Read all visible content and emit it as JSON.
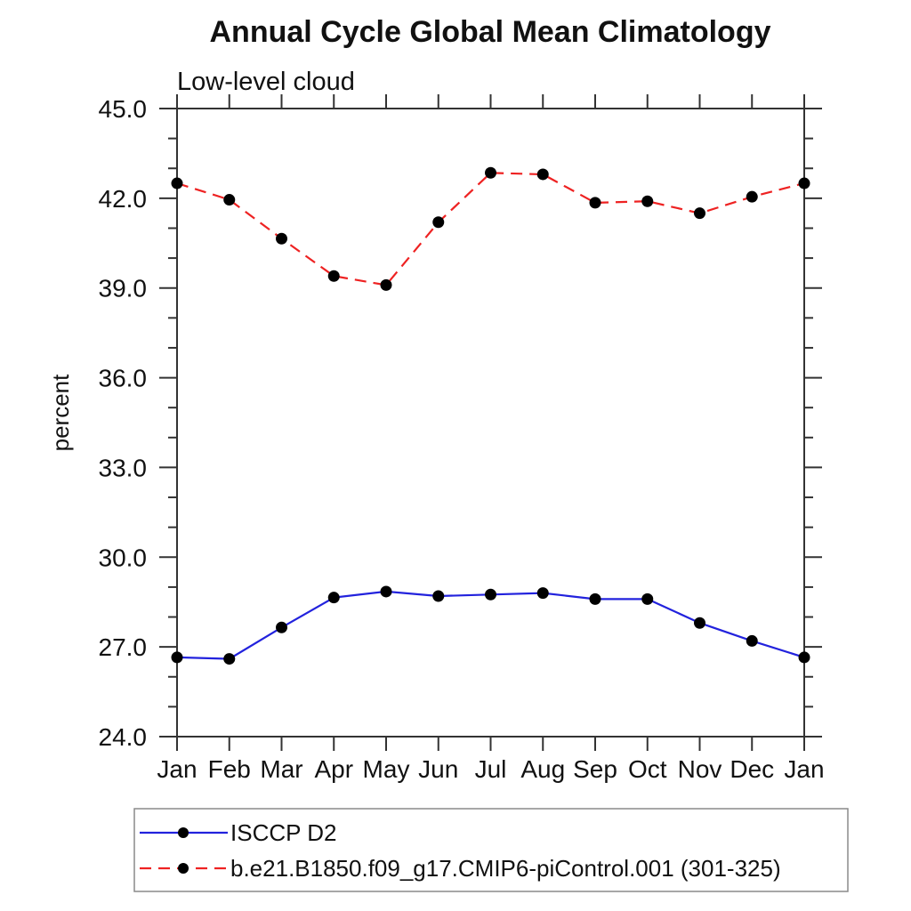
{
  "title": "Annual Cycle Global Mean Climatology",
  "subtitle": "Low-level cloud",
  "ylabel": "percent",
  "colors": {
    "axis": "#333333",
    "text": "#111111",
    "marker": "#000000",
    "series_blue": "#2222dd",
    "series_red": "#ee2222",
    "legend_border": "#8a8a8a"
  },
  "chart_data": {
    "type": "line",
    "title": "Annual Cycle Global Mean Climatology",
    "subtitle": "Low-level cloud",
    "xlabel": "",
    "ylabel": "percent",
    "categories": [
      "Jan",
      "Feb",
      "Mar",
      "Apr",
      "May",
      "Jun",
      "Jul",
      "Aug",
      "Sep",
      "Oct",
      "Nov",
      "Dec",
      "Jan"
    ],
    "series": [
      {
        "name": "ISCCP D2",
        "color": "#2222dd",
        "line_style": "solid",
        "marker": "circle",
        "marker_color": "#000000",
        "values": [
          26.65,
          26.6,
          27.65,
          28.65,
          28.85,
          28.7,
          28.75,
          28.8,
          28.6,
          28.6,
          27.8,
          27.2,
          26.65
        ]
      },
      {
        "name": "b.e21.B1850.f09_g17.CMIP6-piControl.001 (301-325)",
        "color": "#ee2222",
        "line_style": "dashed",
        "marker": "circle",
        "marker_color": "#000000",
        "values": [
          42.5,
          41.95,
          40.65,
          39.4,
          39.1,
          41.2,
          42.85,
          42.8,
          41.85,
          41.9,
          41.5,
          42.05,
          42.5
        ]
      }
    ],
    "ylim": [
      24.0,
      45.0
    ],
    "ytick_major": 3.0,
    "ytick_minor": 1.0,
    "ytick_labels": [
      "24.0",
      "27.0",
      "30.0",
      "33.0",
      "36.0",
      "39.0",
      "42.0",
      "45.0"
    ],
    "grid": false,
    "legend_position": "bottom-left"
  }
}
